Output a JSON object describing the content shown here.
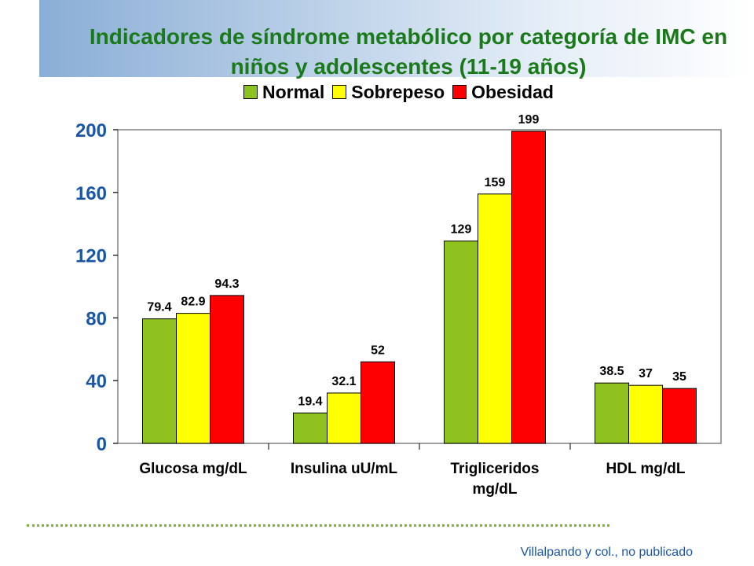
{
  "title": "Indicadores de síndrome metabólico por categoría de IMC en niños y adolescentes (11-19 años)",
  "source": "Villalpando y col., no publicado",
  "colors": {
    "normal": "#8dc21f",
    "sobrepeso": "#ffff00",
    "obesidad": "#ff0000",
    "title": "#1a7a1a",
    "axis_text": "#1a56a8"
  },
  "chart_data": {
    "type": "bar",
    "title": "Indicadores de síndrome metabólico por categoría de IMC en niños y adolescentes (11-19 años)",
    "categories": [
      "Glucosa mg/dL",
      "Insulina uU/mL",
      "Trigliceridos mg/dL",
      "HDL mg/dL"
    ],
    "series": [
      {
        "name": "Normal",
        "color": "#8dc21f",
        "values": [
          79.4,
          19.4,
          129,
          38.5
        ],
        "labels": [
          "79.4",
          "19.4",
          "129",
          "38.5"
        ]
      },
      {
        "name": "Sobrepeso",
        "color": "#ffff00",
        "values": [
          82.9,
          32.1,
          159,
          37
        ],
        "labels": [
          "82.9",
          "32.1",
          "159",
          "37"
        ]
      },
      {
        "name": "Obesidad",
        "color": "#ff0000",
        "values": [
          94.3,
          52,
          199,
          35
        ],
        "labels": [
          "94.3",
          "52",
          "199",
          "35"
        ]
      }
    ],
    "ylim": [
      0,
      200
    ],
    "yticks": [
      0,
      40,
      80,
      120,
      160,
      200
    ],
    "xlabel": "",
    "ylabel": "",
    "legend": "top-center",
    "grid": false
  }
}
